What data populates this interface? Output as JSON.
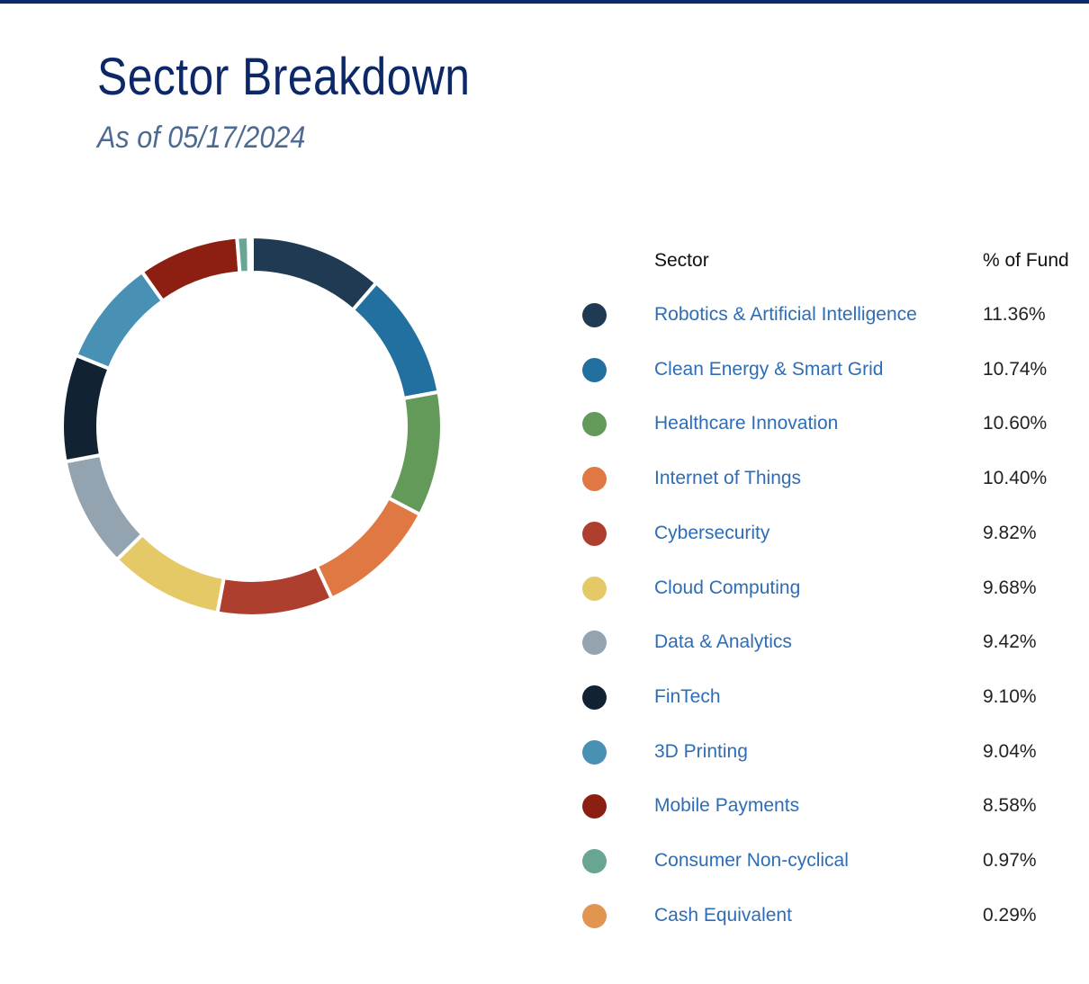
{
  "header": {
    "title": "Sector Breakdown",
    "subtitle": "As of 05/17/2024"
  },
  "table": {
    "col_sector": "Sector",
    "col_pct": "% of Fund"
  },
  "chart_data": {
    "type": "pie",
    "title": "Sector Breakdown",
    "subtitle": "As of 05/17/2024",
    "donut": true,
    "legend_placement": "right",
    "categories": [
      "Robotics & Artificial Intelligence",
      "Clean Energy & Smart Grid",
      "Healthcare Innovation",
      "Internet of Things",
      "Cybersecurity",
      "Cloud Computing",
      "Data & Analytics",
      "FinTech",
      "3D Printing",
      "Mobile Payments",
      "Consumer Non-cyclical",
      "Cash Equivalent"
    ],
    "values": [
      11.36,
      10.74,
      10.6,
      10.4,
      9.82,
      9.68,
      9.42,
      9.1,
      9.04,
      8.58,
      0.97,
      0.29
    ],
    "labels": [
      "11.36%",
      "10.74%",
      "10.60%",
      "10.40%",
      "9.82%",
      "9.68%",
      "9.42%",
      "9.10%",
      "9.04%",
      "8.58%",
      "0.97%",
      "0.29%"
    ],
    "colors": [
      "#1f3a52",
      "#21709f",
      "#639a5a",
      "#e07843",
      "#ae3f2f",
      "#e6c967",
      "#93a3b0",
      "#112333",
      "#4891b5",
      "#8c1f12",
      "#68a592",
      "#e29550"
    ]
  }
}
